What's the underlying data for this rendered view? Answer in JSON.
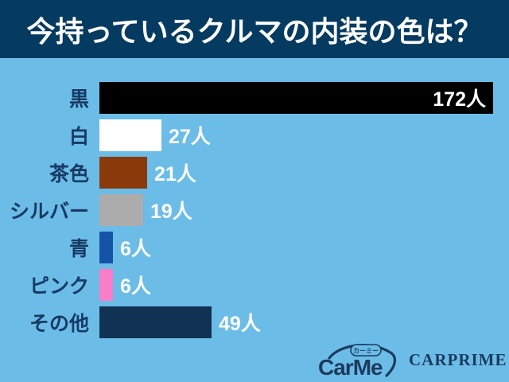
{
  "title": "今持っているクルマの内装の色は？",
  "chart_data": {
    "type": "bar",
    "orientation": "horizontal",
    "title": "今持っているクルマの内装の色は？",
    "unit": "人",
    "categories": [
      "黒",
      "白",
      "茶色",
      "シルバー",
      "青",
      "ピンク",
      "その他"
    ],
    "values": [
      172,
      27,
      21,
      19,
      6,
      6,
      49
    ],
    "value_labels": [
      "172人",
      "27人",
      "21人",
      "19人",
      "6人",
      "6人",
      "49人"
    ],
    "bar_colors": [
      "#000000",
      "#ffffff",
      "#8a3a0a",
      "#acacac",
      "#1553a8",
      "#fb7dc8",
      "#113253"
    ],
    "value_label_position": [
      "inside",
      "outside",
      "outside",
      "outside",
      "outside",
      "outside",
      "outside"
    ],
    "xlim": [
      0,
      172
    ],
    "grid": false,
    "legend": false
  },
  "footer": {
    "carme_wordmark": "CarMe",
    "carme_badge": "カーミー",
    "carprime_wordmark": "CARPRIME"
  },
  "colors": {
    "background": "#6bbde8",
    "header_bg": "#053a61",
    "header_text": "#ffffff",
    "category_label_text": "#173a63",
    "value_label_text": "#ffffff",
    "logo_navy": "#1c3b5e"
  }
}
